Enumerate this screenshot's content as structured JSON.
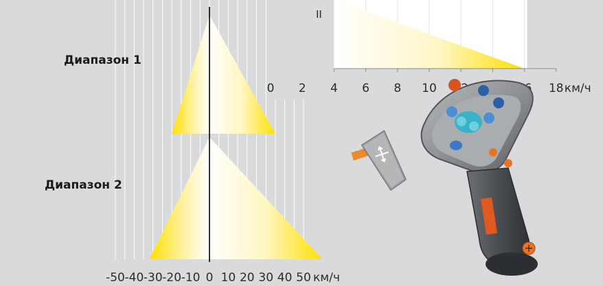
{
  "chart_data": [
    {
      "type": "area",
      "title": "",
      "unit": "км/ч",
      "xlim": [
        -50,
        55
      ],
      "x_ticks": [
        -50,
        -40,
        -30,
        -20,
        -10,
        0,
        10,
        20,
        30,
        40,
        50
      ],
      "tick_labels": [
        "-50",
        "-40",
        "-30",
        "-20",
        "-10",
        "0",
        "10",
        "20",
        "30",
        "40",
        "50"
      ],
      "series": [
        {
          "name": "Диапазон 1",
          "reverse_max": -20,
          "forward_max": 35
        },
        {
          "name": "Диапазон 2",
          "reverse_max": -32,
          "forward_max": 60
        }
      ]
    },
    {
      "type": "area",
      "title": "",
      "unit": "км/ч",
      "xlim": [
        0,
        18
      ],
      "x_ticks": [
        0,
        2,
        4,
        6,
        8,
        10,
        12,
        14,
        16,
        18
      ],
      "tick_labels": [
        "0",
        "2",
        "4",
        "6",
        "8",
        "10",
        "12",
        "14",
        "16",
        "18"
      ],
      "series": [
        {
          "name": "II",
          "forward_min": 4,
          "forward_max": 16
        }
      ]
    }
  ],
  "inset_label": "II",
  "colors": {
    "background": "#d9dadb",
    "grid": "#ffffff",
    "fill_yellow": "#ffe000",
    "zero_line": "#000000"
  },
  "images": [
    "joystick-handle",
    "joystick-lever-icon"
  ]
}
